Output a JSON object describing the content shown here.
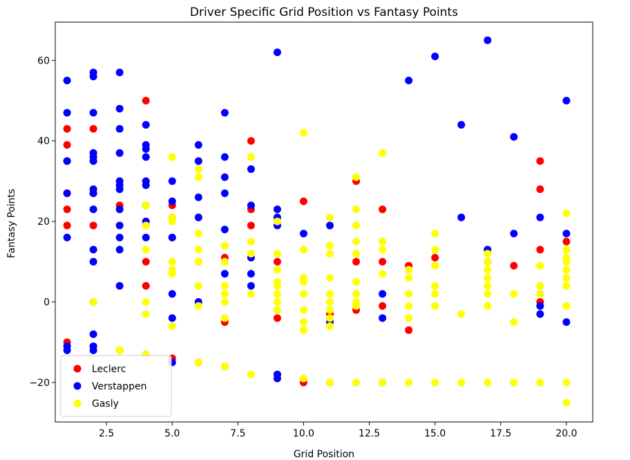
{
  "chart_data": {
    "type": "scatter",
    "title": "Driver Specific Grid Position vs Fantasy Points",
    "xlabel": "Grid Position",
    "ylabel": "Fantasy Points",
    "xlim": [
      0.55,
      21.0
    ],
    "ylim": [
      -29.8,
      69.5
    ],
    "xticks": [
      2.5,
      5.0,
      7.5,
      10.0,
      12.5,
      15.0,
      17.5,
      20.0
    ],
    "xtick_labels": [
      "2.5",
      "5.0",
      "7.5",
      "10.0",
      "12.5",
      "15.0",
      "17.5",
      "20.0"
    ],
    "yticks": [
      -20,
      0,
      20,
      40,
      60
    ],
    "ytick_labels": [
      "−20",
      "0",
      "20",
      "40",
      "60"
    ],
    "grid": false,
    "legend": "lower-left",
    "series": [
      {
        "name": "Leclerc",
        "color": "#ff0000",
        "points": [
          [
            1,
            43
          ],
          [
            1,
            39
          ],
          [
            1,
            35
          ],
          [
            1,
            27
          ],
          [
            1,
            23
          ],
          [
            1,
            19
          ],
          [
            1,
            -10
          ],
          [
            2,
            43
          ],
          [
            2,
            27
          ],
          [
            2,
            19
          ],
          [
            2,
            0
          ],
          [
            3,
            24
          ],
          [
            3,
            -12
          ],
          [
            4,
            50
          ],
          [
            4,
            24
          ],
          [
            4,
            19
          ],
          [
            4,
            10
          ],
          [
            4,
            4
          ],
          [
            4,
            -13
          ],
          [
            5,
            24
          ],
          [
            5,
            21
          ],
          [
            5,
            16
          ],
          [
            5,
            -14
          ],
          [
            6,
            10
          ],
          [
            6,
            -15
          ],
          [
            7,
            11
          ],
          [
            7,
            -5
          ],
          [
            7,
            -16
          ],
          [
            8,
            40
          ],
          [
            8,
            23
          ],
          [
            8,
            19
          ],
          [
            9,
            10
          ],
          [
            9,
            -4
          ],
          [
            9,
            -18
          ],
          [
            10,
            25
          ],
          [
            10,
            -20
          ],
          [
            11,
            -3
          ],
          [
            11,
            -20
          ],
          [
            12,
            30
          ],
          [
            12,
            10
          ],
          [
            12,
            -2
          ],
          [
            13,
            23
          ],
          [
            13,
            10
          ],
          [
            13,
            -1
          ],
          [
            14,
            9
          ],
          [
            14,
            -7
          ],
          [
            15,
            11
          ],
          [
            17,
            10
          ],
          [
            18,
            9
          ],
          [
            19,
            35
          ],
          [
            19,
            28
          ],
          [
            19,
            13
          ],
          [
            19,
            0
          ],
          [
            20,
            15
          ]
        ]
      },
      {
        "name": "Verstappen",
        "color": "#0000ff",
        "points": [
          [
            1,
            55
          ],
          [
            1,
            47
          ],
          [
            1,
            35
          ],
          [
            1,
            27
          ],
          [
            1,
            16
          ],
          [
            1,
            -11
          ],
          [
            1,
            -12
          ],
          [
            2,
            57
          ],
          [
            2,
            56
          ],
          [
            2,
            47
          ],
          [
            2,
            37
          ],
          [
            2,
            36
          ],
          [
            2,
            35
          ],
          [
            2,
            28
          ],
          [
            2,
            27
          ],
          [
            2,
            23
          ],
          [
            2,
            13
          ],
          [
            2,
            10
          ],
          [
            2,
            -8
          ],
          [
            2,
            -11
          ],
          [
            2,
            -12
          ],
          [
            3,
            57
          ],
          [
            3,
            48
          ],
          [
            3,
            43
          ],
          [
            3,
            37
          ],
          [
            3,
            30
          ],
          [
            3,
            29
          ],
          [
            3,
            28
          ],
          [
            3,
            23
          ],
          [
            3,
            19
          ],
          [
            3,
            16
          ],
          [
            3,
            13
          ],
          [
            3,
            4
          ],
          [
            4,
            44
          ],
          [
            4,
            39
          ],
          [
            4,
            38
          ],
          [
            4,
            36
          ],
          [
            4,
            30
          ],
          [
            4,
            29
          ],
          [
            4,
            20
          ],
          [
            4,
            16
          ],
          [
            5,
            30
          ],
          [
            5,
            25
          ],
          [
            5,
            16
          ],
          [
            5,
            2
          ],
          [
            5,
            -4
          ],
          [
            5,
            -15
          ],
          [
            6,
            39
          ],
          [
            6,
            35
          ],
          [
            6,
            26
          ],
          [
            6,
            21
          ],
          [
            6,
            0
          ],
          [
            7,
            47
          ],
          [
            7,
            36
          ],
          [
            7,
            31
          ],
          [
            7,
            27
          ],
          [
            7,
            18
          ],
          [
            7,
            7
          ],
          [
            8,
            33
          ],
          [
            8,
            24
          ],
          [
            8,
            11
          ],
          [
            8,
            7
          ],
          [
            8,
            4
          ],
          [
            9,
            62
          ],
          [
            9,
            23
          ],
          [
            9,
            21
          ],
          [
            9,
            19
          ],
          [
            9,
            -18
          ],
          [
            9,
            -19
          ],
          [
            10,
            17
          ],
          [
            11,
            19
          ],
          [
            11,
            -5
          ],
          [
            13,
            2
          ],
          [
            13,
            -4
          ],
          [
            13,
            -20
          ],
          [
            14,
            55
          ],
          [
            15,
            61
          ],
          [
            16,
            44
          ],
          [
            16,
            21
          ],
          [
            17,
            65
          ],
          [
            17,
            13
          ],
          [
            18,
            41
          ],
          [
            18,
            17
          ],
          [
            19,
            21
          ],
          [
            19,
            -1
          ],
          [
            19,
            -3
          ],
          [
            20,
            50
          ],
          [
            20,
            17
          ],
          [
            20,
            -5
          ]
        ]
      },
      {
        "name": "Gasly",
        "color": "#ffff00",
        "points": [
          [
            2,
            0
          ],
          [
            3,
            -12
          ],
          [
            4,
            24
          ],
          [
            4,
            19
          ],
          [
            4,
            13
          ],
          [
            4,
            0
          ],
          [
            4,
            -3
          ],
          [
            4,
            -13
          ],
          [
            5,
            36
          ],
          [
            5,
            21
          ],
          [
            5,
            20
          ],
          [
            5,
            10
          ],
          [
            5,
            8
          ],
          [
            5,
            7
          ],
          [
            5,
            -6
          ],
          [
            6,
            33
          ],
          [
            6,
            31
          ],
          [
            6,
            17
          ],
          [
            6,
            13
          ],
          [
            6,
            10
          ],
          [
            6,
            4
          ],
          [
            6,
            -1
          ],
          [
            6,
            -15
          ],
          [
            7,
            14
          ],
          [
            7,
            10
          ],
          [
            7,
            4
          ],
          [
            7,
            2
          ],
          [
            7,
            0
          ],
          [
            7,
            -4
          ],
          [
            7,
            -16
          ],
          [
            8,
            36
          ],
          [
            8,
            15
          ],
          [
            8,
            12
          ],
          [
            8,
            2
          ],
          [
            8,
            -18
          ],
          [
            9,
            20
          ],
          [
            9,
            12
          ],
          [
            9,
            8
          ],
          [
            9,
            5
          ],
          [
            9,
            4
          ],
          [
            9,
            2
          ],
          [
            9,
            0
          ],
          [
            9,
            -2
          ],
          [
            10,
            42
          ],
          [
            10,
            13
          ],
          [
            10,
            6
          ],
          [
            10,
            5
          ],
          [
            10,
            2
          ],
          [
            10,
            -2
          ],
          [
            10,
            -5
          ],
          [
            10,
            -7
          ],
          [
            10,
            -19
          ],
          [
            11,
            21
          ],
          [
            11,
            14
          ],
          [
            11,
            12
          ],
          [
            11,
            6
          ],
          [
            11,
            2
          ],
          [
            11,
            0
          ],
          [
            11,
            -2
          ],
          [
            11,
            -4
          ],
          [
            11,
            -6
          ],
          [
            11,
            -20
          ],
          [
            12,
            31
          ],
          [
            12,
            23
          ],
          [
            12,
            19
          ],
          [
            12,
            15
          ],
          [
            12,
            12
          ],
          [
            12,
            5
          ],
          [
            12,
            2
          ],
          [
            12,
            0
          ],
          [
            12,
            -1
          ],
          [
            12,
            -20
          ],
          [
            13,
            37
          ],
          [
            13,
            15
          ],
          [
            13,
            13
          ],
          [
            13,
            7
          ],
          [
            13,
            -20
          ],
          [
            14,
            8
          ],
          [
            14,
            6
          ],
          [
            14,
            2
          ],
          [
            14,
            -1
          ],
          [
            14,
            -4
          ],
          [
            14,
            -20
          ],
          [
            15,
            17
          ],
          [
            15,
            13
          ],
          [
            15,
            9
          ],
          [
            15,
            4
          ],
          [
            15,
            2
          ],
          [
            15,
            -1
          ],
          [
            15,
            -20
          ],
          [
            16,
            -3
          ],
          [
            16,
            -20
          ],
          [
            17,
            12
          ],
          [
            17,
            10
          ],
          [
            17,
            8
          ],
          [
            17,
            6
          ],
          [
            17,
            4
          ],
          [
            17,
            2
          ],
          [
            17,
            -1
          ],
          [
            17,
            -20
          ],
          [
            18,
            2
          ],
          [
            18,
            -5
          ],
          [
            18,
            -20
          ],
          [
            19,
            9
          ],
          [
            19,
            4
          ],
          [
            19,
            2
          ],
          [
            19,
            -20
          ],
          [
            20,
            22
          ],
          [
            20,
            13
          ],
          [
            20,
            11
          ],
          [
            20,
            10
          ],
          [
            20,
            8
          ],
          [
            20,
            6
          ],
          [
            20,
            4
          ],
          [
            20,
            -1
          ],
          [
            20,
            -20
          ],
          [
            20,
            -25
          ]
        ]
      }
    ]
  }
}
